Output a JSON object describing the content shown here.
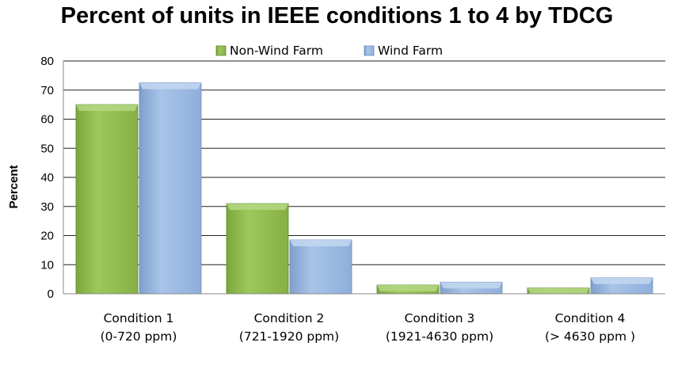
{
  "chart_data": {
    "type": "bar",
    "title": "Percent of units in IEEE conditions 1 to 4 by TDCG",
    "xlabel": "",
    "ylabel": "Percent",
    "categories": [
      [
        "Condition 1",
        "(0-720 ppm)"
      ],
      [
        "Condition 2",
        "(721-1920 ppm)"
      ],
      [
        "Condition 3",
        "(1921-4630 ppm)"
      ],
      [
        "Condition 4",
        "(> 4630 ppm )"
      ]
    ],
    "series": [
      {
        "name": "Non-Wind Farm",
        "values": [
          65,
          31,
          3,
          2
        ],
        "color": "#8fba4e"
      },
      {
        "name": "Wind Farm",
        "values": [
          72.5,
          18.5,
          4,
          5.5
        ],
        "color": "#95b3dc"
      }
    ],
    "ylim": [
      0,
      80
    ],
    "yticks": [
      "0",
      "10",
      "20",
      "30",
      "40",
      "50",
      "60",
      "70",
      "80"
    ],
    "grid": true,
    "legend_position": "top"
  }
}
